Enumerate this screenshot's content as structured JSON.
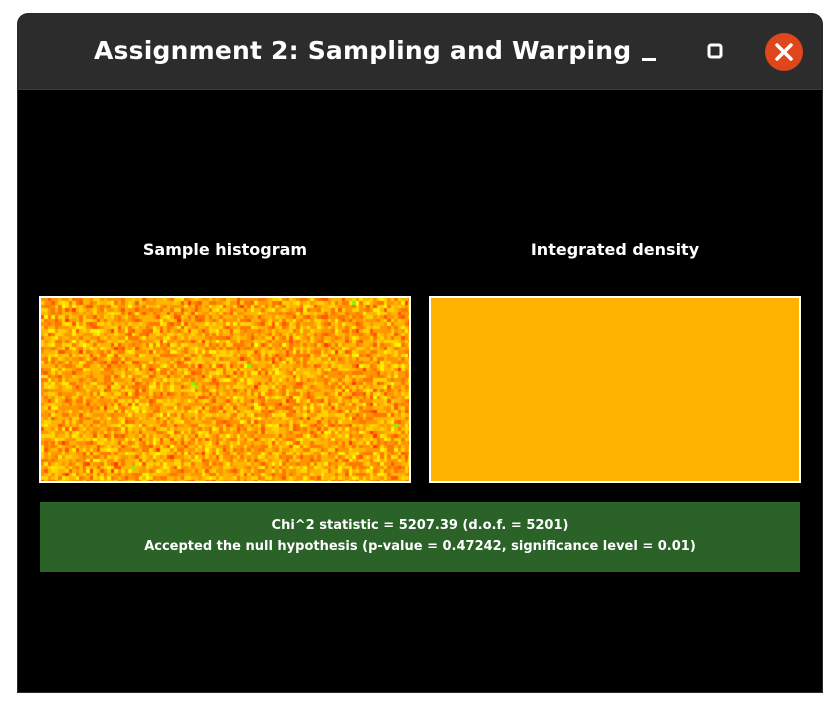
{
  "window": {
    "title": "Assignment 2: Sampling and Warping",
    "controls": {
      "minimize_icon": "minimize-icon",
      "maximize_icon": "maximize-icon",
      "close_icon": "close-icon"
    }
  },
  "panels": {
    "histogram": {
      "title": "Sample histogram",
      "palette": [
        "#ffff00",
        "#ffee00",
        "#ffd200",
        "#ffb400",
        "#ff9600",
        "#ff7800",
        "#ff5a00",
        "#ff3c00",
        "#7cfc00"
      ]
    },
    "density": {
      "title": "Integrated density",
      "color": "#ffb300"
    }
  },
  "result": {
    "chi2_text": "Chi^2 statistic = 5207.39 (d.o.f. = 5201)",
    "conclusion_text": "Accepted the null hypothesis (p-value = 0.47242, significance level = 0.01)",
    "background_color": "#2a6228"
  }
}
